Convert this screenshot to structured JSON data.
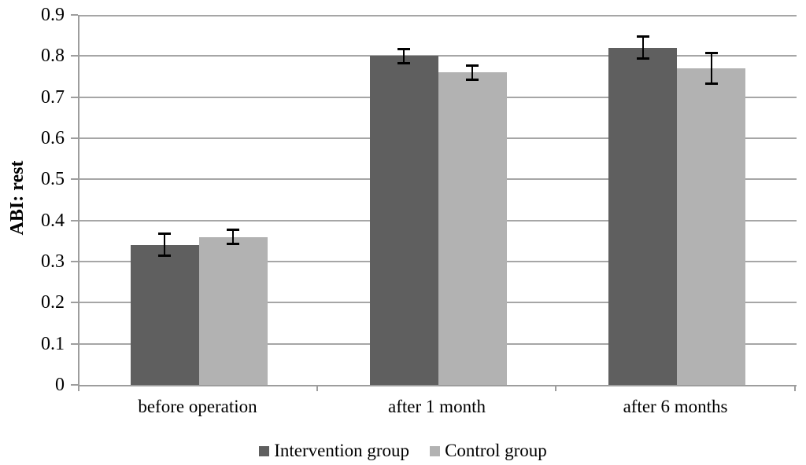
{
  "chart_data": {
    "type": "bar",
    "title": "",
    "xlabel": "",
    "ylabel": "ABI: rest",
    "categories": [
      "before operation",
      "after 1 month",
      "after 6 months"
    ],
    "series": [
      {
        "name": "Intervention group",
        "color": "#5f5f5f",
        "values": [
          0.34,
          0.8,
          0.82
        ],
        "errors": [
          0.03,
          0.02,
          0.03
        ]
      },
      {
        "name": "Control group",
        "color": "#b2b2b2",
        "values": [
          0.36,
          0.76,
          0.77
        ],
        "errors": [
          0.02,
          0.02,
          0.04
        ]
      }
    ],
    "ylim": [
      0,
      0.9
    ],
    "ytick_step": 0.1,
    "ytick_labels": [
      "0",
      "0.1",
      "0.2",
      "0.3",
      "0.4",
      "0.5",
      "0.6",
      "0.7",
      "0.8",
      "0.9"
    ],
    "grid": true,
    "error_bars": true,
    "legend_position": "bottom"
  },
  "colors": {
    "background": "#ffffff",
    "axis": "#9d9d9d",
    "gridline": "#a6a6a6",
    "error_bar": "#000000",
    "text": "#000000"
  }
}
